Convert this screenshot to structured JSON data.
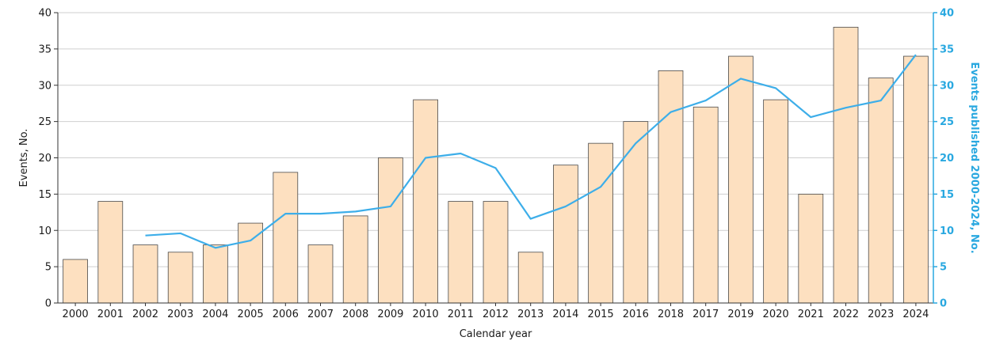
{
  "chart_data": {
    "type": "bar+line",
    "categories": [
      "2000",
      "2001",
      "2002",
      "2003",
      "2004",
      "2005",
      "2006",
      "2007",
      "2008",
      "2009",
      "2010",
      "2011",
      "2012",
      "2013",
      "2014",
      "2015",
      "2016",
      "2018",
      "2017",
      "2019",
      "2020",
      "2021",
      "2022",
      "2023",
      "2024"
    ],
    "series": [
      {
        "type": "bar",
        "axis": "left",
        "values": [
          6,
          14,
          8,
          7,
          8,
          11,
          18,
          8,
          12,
          20,
          28,
          14,
          14,
          7,
          19,
          22,
          25,
          32,
          27,
          34,
          28,
          15,
          38,
          31,
          34
        ]
      },
      {
        "type": "line",
        "axis": "right",
        "values": [
          null,
          null,
          9.3,
          9.6,
          7.6,
          8.6,
          12.3,
          12.3,
          12.6,
          13.3,
          20.0,
          20.6,
          18.6,
          11.6,
          13.3,
          16.0,
          22.0,
          26.3,
          27.9,
          30.9,
          29.6,
          25.6,
          26.9,
          27.9,
          34.2
        ]
      }
    ],
    "xlabel": "Calendar year",
    "ylabel": "Events, No.",
    "ylabel_right": "Events published 2000-2024, No.",
    "ylim": [
      0,
      40
    ],
    "ylim_right": [
      0,
      40
    ],
    "yticks": [
      0,
      5,
      10,
      15,
      20,
      25,
      30,
      35,
      40
    ],
    "grid": true,
    "colors": {
      "bar_fill": "#fde0c0",
      "bar_stroke": "#4a4a4a",
      "line": "#3daee9",
      "right_axis": "#29a8e0",
      "grid": "#cfcfcf",
      "axis": "#333333"
    }
  }
}
